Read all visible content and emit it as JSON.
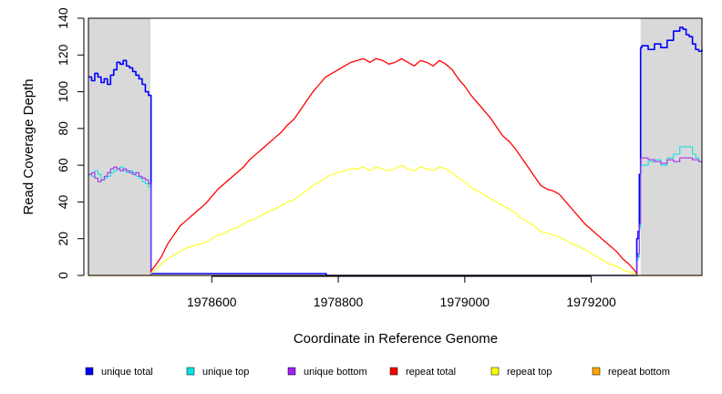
{
  "chart_data": {
    "type": "line",
    "title": "",
    "xlabel": "Coordinate in Reference Genome",
    "ylabel": "Read Coverage Depth",
    "xlim": [
      1978405,
      1979375
    ],
    "ylim": [
      0,
      140
    ],
    "xticks": [
      1978600,
      1978800,
      1979000,
      1979200
    ],
    "xtick_labels": [
      "1978600",
      "1978800",
      "1979000",
      "1979200"
    ],
    "yticks": [
      0,
      20,
      40,
      60,
      80,
      100,
      120,
      140
    ],
    "ytick_labels": [
      "0",
      "20",
      "40",
      "60",
      "80",
      "100",
      "120",
      "140"
    ],
    "shaded_regions": [
      {
        "x0": 1978405,
        "x1": 1978503,
        "color": "#d9d9d9"
      },
      {
        "x0": 1979278,
        "x1": 1979375,
        "color": "#d9d9d9"
      }
    ],
    "series": [
      {
        "name": "unique total",
        "color": "#0000ff",
        "width": 1.6,
        "step": true,
        "x": [
          1978405,
          1978410,
          1978415,
          1978420,
          1978425,
          1978430,
          1978435,
          1978440,
          1978445,
          1978450,
          1978455,
          1978460,
          1978465,
          1978470,
          1978475,
          1978480,
          1978485,
          1978490,
          1978495,
          1978500,
          1978503,
          1978504,
          1978780,
          1978781,
          1979272,
          1979274,
          1979276,
          1979278,
          1979280,
          1979290,
          1979300,
          1979310,
          1979320,
          1979330,
          1979340,
          1979345,
          1979350,
          1979355,
          1979360,
          1979365,
          1979370,
          1979375
        ],
        "y": [
          108,
          106,
          110,
          108,
          105,
          107,
          104,
          109,
          112,
          116,
          115,
          117,
          114,
          113,
          111,
          109,
          107,
          104,
          100,
          98,
          98,
          1,
          1,
          0,
          20,
          24,
          55,
          124,
          125,
          123,
          126,
          124,
          128,
          133,
          135,
          134,
          131,
          130,
          126,
          123,
          122,
          123
        ]
      },
      {
        "name": "unique top",
        "color": "#00e5e5",
        "width": 1,
        "step": true,
        "x": [
          1978405,
          1978410,
          1978415,
          1978420,
          1978425,
          1978430,
          1978435,
          1978440,
          1978445,
          1978450,
          1978455,
          1978460,
          1978465,
          1978470,
          1978475,
          1978480,
          1978485,
          1978490,
          1978495,
          1978500,
          1978503,
          1978504,
          1979272,
          1979274,
          1979276,
          1979278,
          1979290,
          1979300,
          1979310,
          1979320,
          1979330,
          1979340,
          1979350,
          1979360,
          1979365,
          1979370,
          1979375
        ],
        "y": [
          55,
          54,
          57,
          55,
          52,
          53,
          54,
          56,
          57,
          58,
          59,
          57,
          56,
          57,
          56,
          54,
          53,
          51,
          50,
          48,
          47,
          0,
          8,
          10,
          26,
          60,
          62,
          63,
          60,
          64,
          66,
          70,
          70,
          66,
          64,
          62,
          60
        ]
      },
      {
        "name": "unique bottom",
        "color": "#a020f0",
        "width": 1,
        "step": true,
        "x": [
          1978405,
          1978410,
          1978415,
          1978420,
          1978425,
          1978430,
          1978435,
          1978440,
          1978445,
          1978450,
          1978455,
          1978460,
          1978465,
          1978470,
          1978475,
          1978480,
          1978485,
          1978490,
          1978495,
          1978500,
          1978503,
          1978504,
          1979272,
          1979274,
          1979276,
          1979278,
          1979290,
          1979300,
          1979310,
          1979320,
          1979330,
          1979340,
          1979350,
          1979360,
          1979365,
          1979370,
          1979375
        ],
        "y": [
          55,
          56,
          53,
          51,
          52,
          54,
          56,
          58,
          59,
          58,
          57,
          58,
          57,
          56,
          55,
          56,
          54,
          53,
          52,
          50,
          50,
          0,
          10,
          12,
          28,
          64,
          63,
          62,
          61,
          63,
          62,
          64,
          64,
          63,
          63,
          62,
          62
        ]
      },
      {
        "name": "repeat total",
        "color": "#ff0000",
        "width": 1.3,
        "step": false,
        "x": [
          1978503,
          1978510,
          1978520,
          1978530,
          1978540,
          1978550,
          1978560,
          1978570,
          1978580,
          1978590,
          1978600,
          1978610,
          1978620,
          1978630,
          1978640,
          1978650,
          1978660,
          1978670,
          1978680,
          1978690,
          1978700,
          1978710,
          1978720,
          1978730,
          1978740,
          1978750,
          1978760,
          1978770,
          1978780,
          1978790,
          1978800,
          1978810,
          1978820,
          1978830,
          1978840,
          1978850,
          1978860,
          1978870,
          1978880,
          1978890,
          1978900,
          1978910,
          1978920,
          1978930,
          1978940,
          1978950,
          1978960,
          1978970,
          1978980,
          1978990,
          1979000,
          1979010,
          1979020,
          1979030,
          1979040,
          1979050,
          1979060,
          1979070,
          1979080,
          1979090,
          1979100,
          1979110,
          1979120,
          1979130,
          1979140,
          1979150,
          1979160,
          1979170,
          1979180,
          1979190,
          1979200,
          1979210,
          1979220,
          1979230,
          1979240,
          1979250,
          1979260,
          1979268,
          1979272
        ],
        "y": [
          2,
          5,
          10,
          17,
          22,
          27,
          30,
          33,
          36,
          39,
          43,
          47,
          50,
          53,
          56,
          59,
          63,
          66,
          69,
          72,
          75,
          78,
          82,
          85,
          90,
          95,
          100,
          104,
          108,
          110,
          112,
          114,
          116,
          117,
          118,
          116,
          118,
          117,
          115,
          116,
          118,
          116,
          114,
          117,
          116,
          114,
          117,
          115,
          112,
          107,
          103,
          98,
          94,
          90,
          86,
          81,
          76,
          73,
          69,
          64,
          59,
          54,
          49,
          47,
          46,
          44,
          40,
          36,
          32,
          28,
          25,
          22,
          19,
          16,
          13,
          9,
          6,
          3,
          1
        ]
      },
      {
        "name": "repeat top",
        "color": "#ffff00",
        "width": 1,
        "step": false,
        "x": [
          1978503,
          1978510,
          1978520,
          1978530,
          1978540,
          1978550,
          1978560,
          1978570,
          1978580,
          1978590,
          1978600,
          1978610,
          1978620,
          1978630,
          1978640,
          1978650,
          1978660,
          1978670,
          1978680,
          1978690,
          1978700,
          1978710,
          1978720,
          1978730,
          1978740,
          1978750,
          1978760,
          1978770,
          1978780,
          1978790,
          1978800,
          1978810,
          1978820,
          1978830,
          1978840,
          1978850,
          1978860,
          1978870,
          1978880,
          1978890,
          1978900,
          1978910,
          1978920,
          1978930,
          1978940,
          1978950,
          1978960,
          1978970,
          1978980,
          1978990,
          1979000,
          1979010,
          1979020,
          1979030,
          1979040,
          1979050,
          1979060,
          1979070,
          1979080,
          1979090,
          1979100,
          1979110,
          1979120,
          1979130,
          1979140,
          1979150,
          1979160,
          1979170,
          1979180,
          1979190,
          1979200,
          1979210,
          1979220,
          1979230,
          1979240,
          1979250,
          1979260,
          1979268,
          1979272
        ],
        "y": [
          1,
          3,
          6,
          9,
          11,
          13,
          15,
          16,
          17,
          18,
          20,
          22,
          23,
          25,
          26,
          28,
          30,
          31,
          33,
          35,
          36,
          38,
          40,
          41,
          44,
          46,
          49,
          51,
          53,
          55,
          56,
          57,
          58,
          58,
          59,
          57,
          59,
          58,
          57,
          58,
          60,
          58,
          57,
          59,
          58,
          57,
          59,
          58,
          56,
          53,
          51,
          48,
          46,
          44,
          42,
          40,
          38,
          36,
          34,
          31,
          29,
          27,
          24,
          23,
          22,
          21,
          19,
          17,
          16,
          14,
          12,
          10,
          8,
          6,
          5,
          3,
          2,
          1,
          0
        ]
      },
      {
        "name": "repeat bottom",
        "color": "#ffa500",
        "width": 1.3,
        "step": false,
        "x": [
          1978405,
          1979375
        ],
        "y": [
          0,
          0
        ]
      }
    ],
    "legend": {
      "position": "bottom",
      "entries": [
        {
          "label": "unique total",
          "color": "#0000ff"
        },
        {
          "label": "unique top",
          "color": "#00e5e5"
        },
        {
          "label": "unique bottom",
          "color": "#a020f0"
        },
        {
          "label": "repeat total",
          "color": "#ff0000"
        },
        {
          "label": "repeat top",
          "color": "#ffff00"
        },
        {
          "label": "repeat bottom",
          "color": "#ffa500"
        }
      ]
    }
  }
}
